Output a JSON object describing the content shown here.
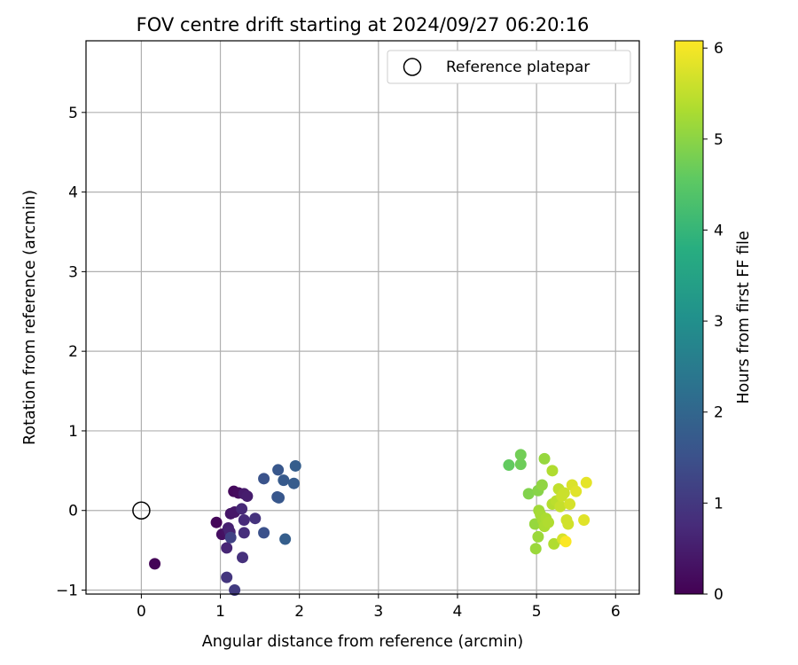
{
  "chart_data": {
    "type": "scatter",
    "title": "FOV centre drift starting at 2024/09/27 06:20:16",
    "xlabel": "Angular distance from reference (arcmin)",
    "ylabel": "Rotation from reference (arcmin)",
    "xlim": [
      -0.7,
      6.3
    ],
    "ylim": [
      -1.05,
      5.9
    ],
    "xticks": [
      0,
      1,
      2,
      3,
      4,
      5,
      6
    ],
    "yticks": [
      -1,
      0,
      1,
      2,
      3,
      4,
      5
    ],
    "grid": true,
    "legend": {
      "placement": "top-right",
      "entries": [
        "Reference platepar"
      ]
    },
    "reference": {
      "x": 0,
      "y": 0,
      "label": "Reference platepar"
    },
    "colorbar": {
      "label": "Hours from first FF file",
      "range": [
        0,
        6.08
      ],
      "ticks": [
        0,
        1,
        2,
        3,
        4,
        5,
        6
      ],
      "colormap": "viridis"
    },
    "points": [
      {
        "x": 0.17,
        "y": -0.67,
        "t": 0.05
      },
      {
        "x": 0.95,
        "y": -0.15,
        "t": 0.1
      },
      {
        "x": 1.17,
        "y": 0.24,
        "t": 0.15
      },
      {
        "x": 1.23,
        "y": 0.22,
        "t": 0.2
      },
      {
        "x": 1.02,
        "y": -0.3,
        "t": 0.25
      },
      {
        "x": 1.08,
        "y": -0.27,
        "t": 0.3
      },
      {
        "x": 1.13,
        "y": -0.04,
        "t": 0.35
      },
      {
        "x": 1.18,
        "y": -0.02,
        "t": 0.4
      },
      {
        "x": 1.3,
        "y": 0.21,
        "t": 0.45
      },
      {
        "x": 1.34,
        "y": 0.18,
        "t": 0.5
      },
      {
        "x": 1.1,
        "y": -0.22,
        "t": 0.55
      },
      {
        "x": 1.12,
        "y": -0.27,
        "t": 0.6
      },
      {
        "x": 1.08,
        "y": -0.47,
        "t": 0.65
      },
      {
        "x": 1.27,
        "y": 0.02,
        "t": 0.7
      },
      {
        "x": 1.3,
        "y": -0.12,
        "t": 0.75
      },
      {
        "x": 1.3,
        "y": -0.28,
        "t": 0.8
      },
      {
        "x": 1.28,
        "y": -0.59,
        "t": 0.85
      },
      {
        "x": 1.44,
        "y": -0.1,
        "t": 0.9
      },
      {
        "x": 1.08,
        "y": -0.84,
        "t": 0.95
      },
      {
        "x": 1.18,
        "y": -1.0,
        "t": 1.05
      },
      {
        "x": 1.13,
        "y": -0.34,
        "t": 1.2
      },
      {
        "x": 1.55,
        "y": -0.28,
        "t": 1.5
      },
      {
        "x": 1.55,
        "y": 0.4,
        "t": 1.55
      },
      {
        "x": 1.72,
        "y": 0.17,
        "t": 1.6
      },
      {
        "x": 1.74,
        "y": 0.16,
        "t": 1.65
      },
      {
        "x": 1.73,
        "y": 0.51,
        "t": 1.65
      },
      {
        "x": 1.8,
        "y": 0.38,
        "t": 1.7
      },
      {
        "x": 1.93,
        "y": 0.34,
        "t": 1.75
      },
      {
        "x": 1.95,
        "y": 0.56,
        "t": 1.8
      },
      {
        "x": 1.82,
        "y": -0.36,
        "t": 1.8
      },
      {
        "x": 4.65,
        "y": 0.57,
        "t": 4.6
      },
      {
        "x": 4.8,
        "y": 0.58,
        "t": 4.7
      },
      {
        "x": 4.8,
        "y": 0.7,
        "t": 4.75
      },
      {
        "x": 4.9,
        "y": 0.21,
        "t": 4.9
      },
      {
        "x": 5.02,
        "y": 0.25,
        "t": 4.95
      },
      {
        "x": 5.07,
        "y": 0.32,
        "t": 5.05
      },
      {
        "x": 5.1,
        "y": 0.65,
        "t": 5.1
      },
      {
        "x": 4.98,
        "y": -0.17,
        "t": 5.1
      },
      {
        "x": 5.02,
        "y": -0.33,
        "t": 5.15
      },
      {
        "x": 4.99,
        "y": -0.48,
        "t": 5.15
      },
      {
        "x": 5.03,
        "y": 0.0,
        "t": 5.2
      },
      {
        "x": 5.05,
        "y": -0.05,
        "t": 5.25
      },
      {
        "x": 5.08,
        "y": -0.12,
        "t": 5.25
      },
      {
        "x": 5.1,
        "y": -0.2,
        "t": 5.3
      },
      {
        "x": 5.12,
        "y": -0.1,
        "t": 5.3
      },
      {
        "x": 5.15,
        "y": -0.15,
        "t": 5.35
      },
      {
        "x": 5.2,
        "y": 0.5,
        "t": 5.35
      },
      {
        "x": 5.22,
        "y": -0.42,
        "t": 5.35
      },
      {
        "x": 5.2,
        "y": 0.08,
        "t": 5.4
      },
      {
        "x": 5.25,
        "y": 0.12,
        "t": 5.45
      },
      {
        "x": 5.28,
        "y": 0.27,
        "t": 5.5
      },
      {
        "x": 5.3,
        "y": 0.05,
        "t": 5.55
      },
      {
        "x": 5.32,
        "y": 0.18,
        "t": 5.6
      },
      {
        "x": 5.35,
        "y": 0.22,
        "t": 5.6
      },
      {
        "x": 5.38,
        "y": -0.12,
        "t": 5.65
      },
      {
        "x": 5.4,
        "y": -0.17,
        "t": 5.65
      },
      {
        "x": 5.33,
        "y": -0.36,
        "t": 5.7
      },
      {
        "x": 5.42,
        "y": 0.08,
        "t": 5.7
      },
      {
        "x": 5.45,
        "y": 0.32,
        "t": 5.75
      },
      {
        "x": 5.5,
        "y": 0.24,
        "t": 5.8
      },
      {
        "x": 5.6,
        "y": -0.12,
        "t": 5.8
      },
      {
        "x": 5.63,
        "y": 0.35,
        "t": 5.85
      },
      {
        "x": 5.37,
        "y": -0.39,
        "t": 6.05
      }
    ]
  }
}
